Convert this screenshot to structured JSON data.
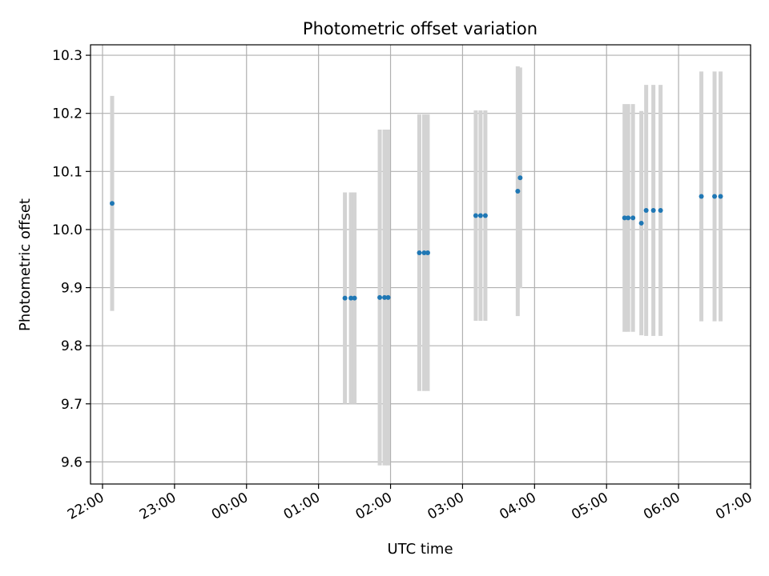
{
  "chart_data": {
    "type": "scatter",
    "title": "Photometric offset variation",
    "xlabel": "UTC time",
    "ylabel": "Photometric offset",
    "x_axis": {
      "type": "time",
      "range": [
        "21:50",
        "31:00"
      ],
      "ticks": [
        "22:00",
        "23:00",
        "00:00",
        "01:00",
        "02:00",
        "03:00",
        "04:00",
        "05:00",
        "06:00",
        "07:00"
      ]
    },
    "y_axis": {
      "range": [
        9.562,
        10.318
      ],
      "ticks": [
        "9.6",
        "9.7",
        "9.8",
        "9.9",
        "10.0",
        "10.1",
        "10.2",
        "10.3"
      ]
    },
    "grid": true,
    "colors": {
      "point": "#1f77b4",
      "errorbar": "#d3d3d3",
      "grid": "#b0b0b0"
    },
    "points": [
      {
        "time": "22:08",
        "y": 10.045,
        "err": 0.185
      },
      {
        "time": "01:22",
        "y": 9.882,
        "err": 0.182
      },
      {
        "time": "01:27",
        "y": 9.882,
        "err": 0.182
      },
      {
        "time": "01:30",
        "y": 9.882,
        "err": 0.182
      },
      {
        "time": "01:51",
        "y": 9.883,
        "err": 0.289
      },
      {
        "time": "01:55",
        "y": 9.883,
        "err": 0.289
      },
      {
        "time": "01:58",
        "y": 9.883,
        "err": 0.289
      },
      {
        "time": "02:24",
        "y": 9.96,
        "err": 0.238
      },
      {
        "time": "02:28",
        "y": 9.96,
        "err": 0.238
      },
      {
        "time": "02:31",
        "y": 9.96,
        "err": 0.238
      },
      {
        "time": "03:11",
        "y": 10.024,
        "err": 0.181
      },
      {
        "time": "03:15",
        "y": 10.024,
        "err": 0.181
      },
      {
        "time": "03:19",
        "y": 10.024,
        "err": 0.181
      },
      {
        "time": "03:46",
        "y": 10.066,
        "err": 0.215
      },
      {
        "time": "03:48",
        "y": 10.089,
        "err": 0.19
      },
      {
        "time": "05:15",
        "y": 10.02,
        "err": 0.196
      },
      {
        "time": "05:18",
        "y": 10.02,
        "err": 0.196
      },
      {
        "time": "05:22",
        "y": 10.02,
        "err": 0.196
      },
      {
        "time": "05:29",
        "y": 10.011,
        "err": 0.193
      },
      {
        "time": "05:33",
        "y": 10.033,
        "err": 0.216
      },
      {
        "time": "05:39",
        "y": 10.033,
        "err": 0.216
      },
      {
        "time": "05:45",
        "y": 10.033,
        "err": 0.216
      },
      {
        "time": "06:19",
        "y": 10.057,
        "err": 0.215
      },
      {
        "time": "06:30",
        "y": 10.057,
        "err": 0.215
      },
      {
        "time": "06:35",
        "y": 10.057,
        "err": 0.215
      }
    ]
  }
}
